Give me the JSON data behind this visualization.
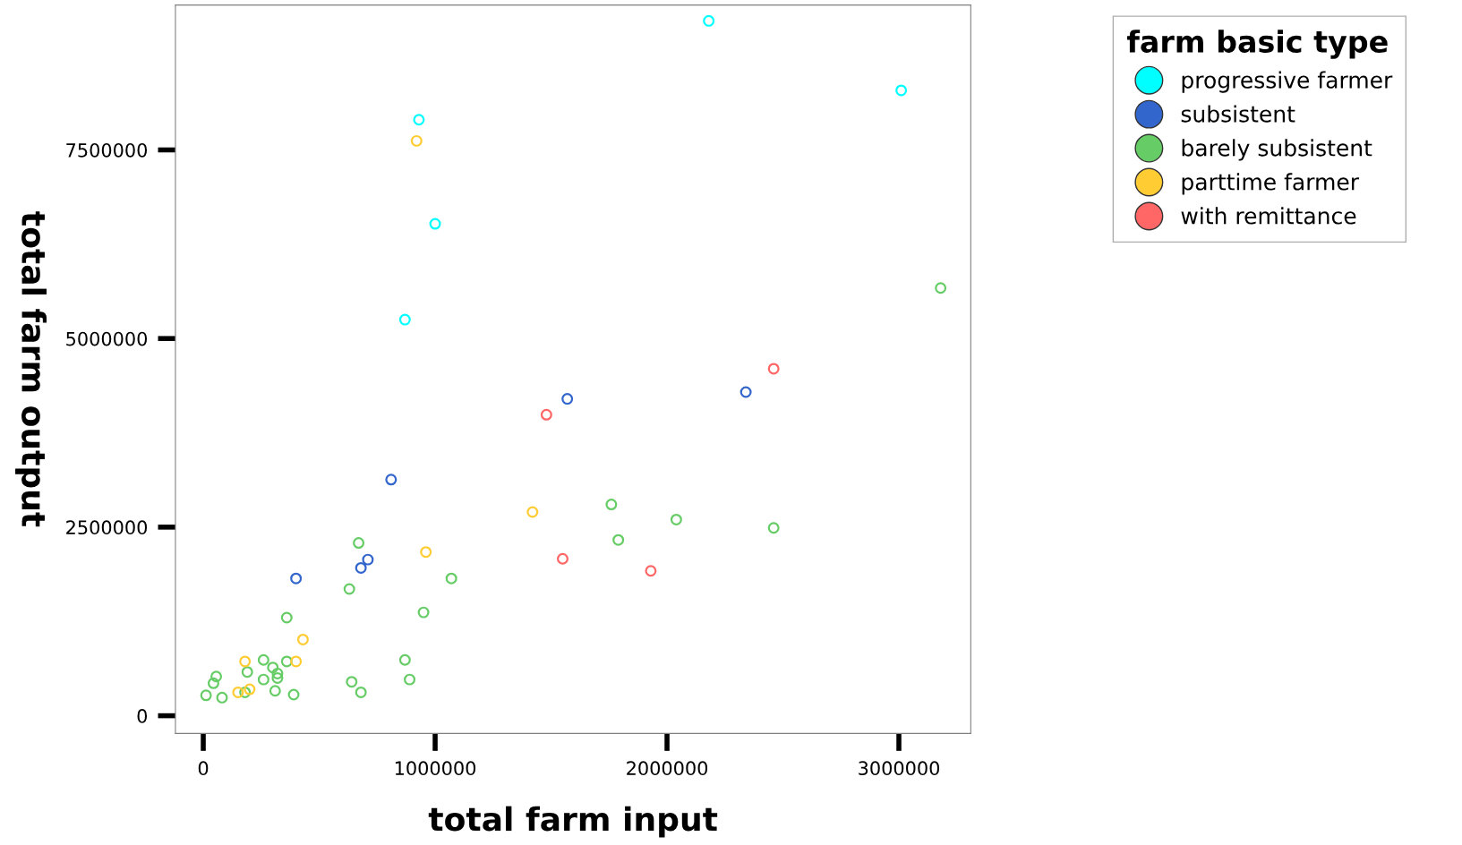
{
  "chart_data": {
    "type": "scatter",
    "xlabel": "total farm input",
    "ylabel": "total farm output",
    "legend_title": "farm basic type",
    "xlim": [
      -120000,
      3310000
    ],
    "ylim": [
      -235000,
      9420000
    ],
    "xticks": [
      0,
      1000000,
      2000000,
      3000000
    ],
    "yticks": [
      0,
      2500000,
      5000000,
      7500000
    ],
    "grid": false,
    "legend": "top right",
    "marker": "circle",
    "series": [
      {
        "name": "progressive farmer",
        "color": "#00ffff",
        "x": [
          2180000,
          3010000,
          930000,
          1000000,
          870000
        ],
        "values": [
          9210000,
          8290000,
          7900000,
          6520000,
          5250000
        ]
      },
      {
        "name": "subsistent",
        "color": "#3366cc",
        "x": [
          1570000,
          2340000,
          810000,
          400000,
          680000,
          710000
        ],
        "values": [
          4200000,
          4290000,
          3130000,
          1820000,
          1960000,
          2070000
        ]
      },
      {
        "name": "barely subsistent",
        "color": "#66cc66",
        "x": [
          3180000,
          1760000,
          2040000,
          2460000,
          1790000,
          670000,
          1070000,
          630000,
          950000,
          360000,
          870000,
          890000,
          640000,
          680000,
          260000,
          360000,
          300000,
          190000,
          320000,
          320000,
          260000,
          310000,
          390000,
          56000,
          44000,
          12000,
          81000,
          180000
        ],
        "values": [
          5670000,
          2800000,
          2600000,
          2490000,
          2330000,
          2290000,
          1820000,
          1680000,
          1370000,
          1300000,
          740000,
          480000,
          450000,
          310000,
          740000,
          720000,
          640000,
          580000,
          560000,
          500000,
          480000,
          330000,
          280000,
          520000,
          430000,
          270000,
          240000,
          310000
        ]
      },
      {
        "name": "parttime farmer",
        "color": "#ffcc33",
        "x": [
          920000,
          1420000,
          960000,
          430000,
          180000,
          400000,
          150000,
          200000
        ],
        "values": [
          7620000,
          2700000,
          2170000,
          1010000,
          720000,
          720000,
          310000,
          350000
        ]
      },
      {
        "name": "with remittance",
        "color": "#ff6666",
        "x": [
          2460000,
          1480000,
          1550000,
          1930000
        ],
        "values": [
          4600000,
          3990000,
          2080000,
          1920000
        ]
      }
    ]
  }
}
